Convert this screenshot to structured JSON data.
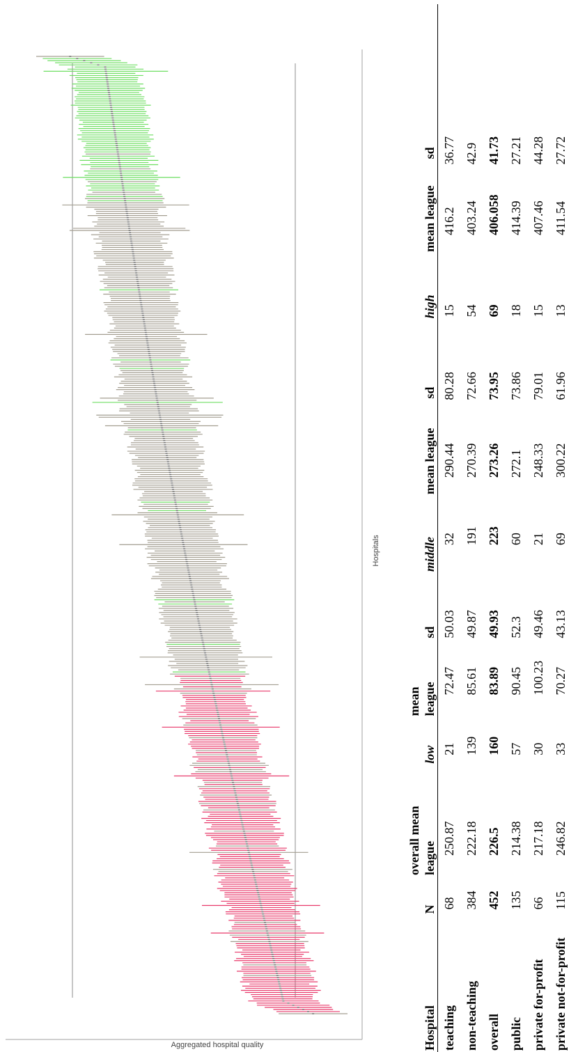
{
  "chart": {
    "xlabel": "Hospitals",
    "ylabel": "Aggregated hospital quality",
    "colors": {
      "low": "#e8386a",
      "middle": "#a39e90",
      "high": "#6ede62",
      "axis": "#a0a0a0",
      "whisker": "#6b6b6b"
    }
  },
  "chart_data": {
    "type": "scatter",
    "title": "",
    "xlabel": "Hospitals",
    "ylabel": "Aggregated hospital quality",
    "x_count": 452,
    "ylim": [
      -0.3,
      1.3
    ],
    "reference_lines": [
      0,
      1
    ],
    "grid": false,
    "legend": "none",
    "series": [
      {
        "name": "",
        "category": "low",
        "count": 160,
        "estimate_range": [
          0.05,
          0.4
        ]
      },
      {
        "name": "",
        "category": "middle",
        "count": 223,
        "estimate_range": [
          0.38,
          0.72
        ]
      },
      {
        "name": "",
        "category": "high",
        "count": 69,
        "estimate_range": [
          0.6,
          0.98
        ]
      }
    ]
  },
  "table": {
    "headers": {
      "hospital": "Hospital",
      "n": "N",
      "overall_mean_league": [
        "overall mean",
        "league"
      ],
      "low": "low",
      "low_mean_league": [
        "mean",
        "league"
      ],
      "low_sd": "sd",
      "middle": "middle",
      "middle_mean_league": "mean league",
      "middle_sd": "sd",
      "high": "high",
      "high_mean_league": "mean league",
      "high_sd": "sd"
    },
    "rows": [
      {
        "label": "teaching",
        "n": "68",
        "overall": "250.87",
        "low": "21",
        "low_mean": "72.47",
        "low_sd": "50.03",
        "middle": "32",
        "middle_mean": "290.44",
        "middle_sd": "80.28",
        "high": "15",
        "high_mean": "416.2",
        "high_sd": "36.77"
      },
      {
        "label": "non-teaching",
        "n": "384",
        "overall": "222.18",
        "low": "139",
        "low_mean": "85.61",
        "low_sd": "49.87",
        "middle": "191",
        "middle_mean": "270.39",
        "middle_sd": "72.66",
        "high": "54",
        "high_mean": "403.24",
        "high_sd": "42.9"
      },
      {
        "label": "overall",
        "n": "452",
        "overall": "226.5",
        "low": "160",
        "low_mean": "83.89",
        "low_sd": "49.93",
        "middle": "223",
        "middle_mean": "273.26",
        "middle_sd": "73.95",
        "high": "69",
        "high_mean": "406.058",
        "high_sd": "41.73"
      },
      {
        "label": "public",
        "n": "135",
        "overall": "214.38",
        "low": "57",
        "low_mean": "90.45",
        "low_sd": "52.3",
        "middle": "60",
        "middle_mean": "272.1",
        "middle_sd": "73.86",
        "high": "18",
        "high_mean": "414.39",
        "high_sd": "27.21"
      },
      {
        "label": "private for-profit",
        "n": "66",
        "overall": "217.18",
        "low": "30",
        "low_mean": "100.23",
        "low_sd": "49.46",
        "middle": "21",
        "middle_mean": "248.33",
        "middle_sd": "79.01",
        "high": "15",
        "high_mean": "407.46",
        "high_sd": "44.28"
      },
      {
        "label": "private not-for-profit",
        "n": "115",
        "overall": "246.82",
        "low": "33",
        "low_mean": "70.27",
        "low_sd": "43.13",
        "middle": "69",
        "middle_mean": "300.22",
        "middle_sd": "61.96",
        "high": "13",
        "high_mean": "411.54",
        "high_sd": "27.72"
      }
    ]
  }
}
